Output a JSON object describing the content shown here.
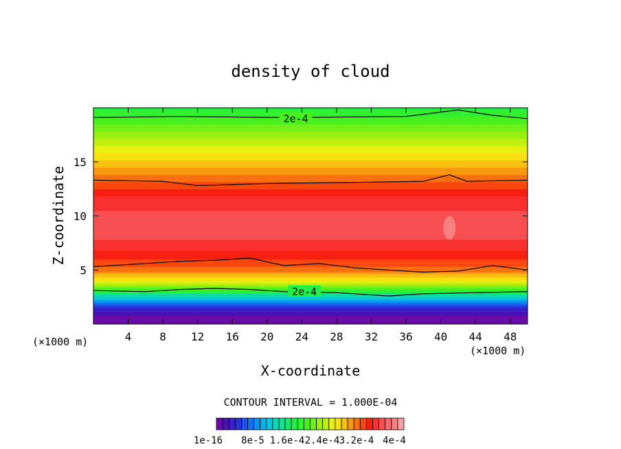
{
  "chart_data": {
    "type": "heatmap",
    "title": "density of cloud",
    "xlabel": "X-coordinate",
    "ylabel": "Z-coordinate",
    "x_unit_left": "(×1000 m)",
    "x_unit_right": "(×1000 m)",
    "xlim": [
      0,
      50
    ],
    "ylim": [
      0,
      20
    ],
    "x_ticks": [
      4,
      8,
      12,
      16,
      20,
      24,
      28,
      32,
      36,
      40,
      44,
      48
    ],
    "y_ticks": [
      5,
      10,
      15
    ],
    "contour_interval_label": "CONTOUR INTERVAL = 1.000E-04",
    "contour_labels": [
      {
        "text": "2e-4",
        "x": 23.3,
        "z": 19.0
      },
      {
        "text": "2e-4",
        "x": 24.3,
        "z": 3.0
      }
    ],
    "contour_levels": [
      {
        "name": "top-2e-4",
        "points": [
          [
            0,
            19.1
          ],
          [
            10,
            19.2
          ],
          [
            22,
            19.1
          ],
          [
            36,
            19.2
          ],
          [
            42,
            19.8
          ],
          [
            46,
            19.3
          ],
          [
            50,
            19.0
          ]
        ]
      },
      {
        "name": "upper-3e-4",
        "points": [
          [
            0,
            13.3
          ],
          [
            8,
            13.2
          ],
          [
            12,
            12.8
          ],
          [
            20,
            13.0
          ],
          [
            30,
            13.1
          ],
          [
            38,
            13.2
          ],
          [
            41,
            13.8
          ],
          [
            43,
            13.2
          ],
          [
            50,
            13.3
          ]
        ]
      },
      {
        "name": "lower-3e-4",
        "points": [
          [
            0,
            5.3
          ],
          [
            6,
            5.6
          ],
          [
            10,
            5.8
          ],
          [
            14,
            5.9
          ],
          [
            18,
            6.1
          ],
          [
            22,
            5.4
          ],
          [
            26,
            5.6
          ],
          [
            30,
            5.2
          ],
          [
            34,
            5.0
          ],
          [
            38,
            4.8
          ],
          [
            42,
            4.9
          ],
          [
            46,
            5.4
          ],
          [
            50,
            5.0
          ]
        ]
      },
      {
        "name": "lower-2e-4",
        "points": [
          [
            0,
            3.1
          ],
          [
            6,
            3.0
          ],
          [
            10,
            3.2
          ],
          [
            14,
            3.3
          ],
          [
            18,
            3.2
          ],
          [
            22,
            3.0
          ],
          [
            28,
            2.9
          ],
          [
            34,
            2.6
          ],
          [
            38,
            2.8
          ],
          [
            44,
            2.9
          ],
          [
            50,
            3.0
          ]
        ]
      }
    ],
    "profile": [
      {
        "z": 0.0,
        "value": 0.0
      },
      {
        "z": 0.8,
        "value": 1e-05
      },
      {
        "z": 1.3,
        "value": 3e-05
      },
      {
        "z": 1.8,
        "value": 6e-05
      },
      {
        "z": 2.3,
        "value": 0.0001
      },
      {
        "z": 2.8,
        "value": 0.00015
      },
      {
        "z": 3.3,
        "value": 0.0002
      },
      {
        "z": 4.0,
        "value": 0.00025
      },
      {
        "z": 5.0,
        "value": 0.0003
      },
      {
        "z": 6.5,
        "value": 0.00033
      },
      {
        "z": 8.0,
        "value": 0.00035
      },
      {
        "z": 10.0,
        "value": 0.00035
      },
      {
        "z": 11.5,
        "value": 0.00034
      },
      {
        "z": 13.0,
        "value": 0.00031
      },
      {
        "z": 14.5,
        "value": 0.00028
      },
      {
        "z": 16.0,
        "value": 0.00025
      },
      {
        "z": 17.5,
        "value": 0.00022
      },
      {
        "z": 19.0,
        "value": 0.00019
      },
      {
        "z": 20.0,
        "value": 0.00017
      }
    ],
    "hotspot": {
      "x": 41,
      "z": 8.9,
      "value": 0.00038
    },
    "colorbar": {
      "colors": [
        "#6a0aa8",
        "#4a10b8",
        "#3a20c8",
        "#2a30d8",
        "#2050e8",
        "#1070f0",
        "#0a90f0",
        "#08b0e8",
        "#08c8d8",
        "#08d8b8",
        "#10e090",
        "#18e868",
        "#20f048",
        "#30f030",
        "#48f020",
        "#70f018",
        "#98f010",
        "#c0f010",
        "#e8f010",
        "#f8e010",
        "#f8c010",
        "#f89810",
        "#f87010",
        "#f84810",
        "#f82010",
        "#f83030",
        "#f85050",
        "#f86868",
        "#f88080",
        "#f8a0a0"
      ],
      "labels": [
        "1e-16",
        "8e-5",
        "1.6e-4",
        "2.4e-4",
        "3.2e-4",
        "4e-4"
      ]
    }
  }
}
